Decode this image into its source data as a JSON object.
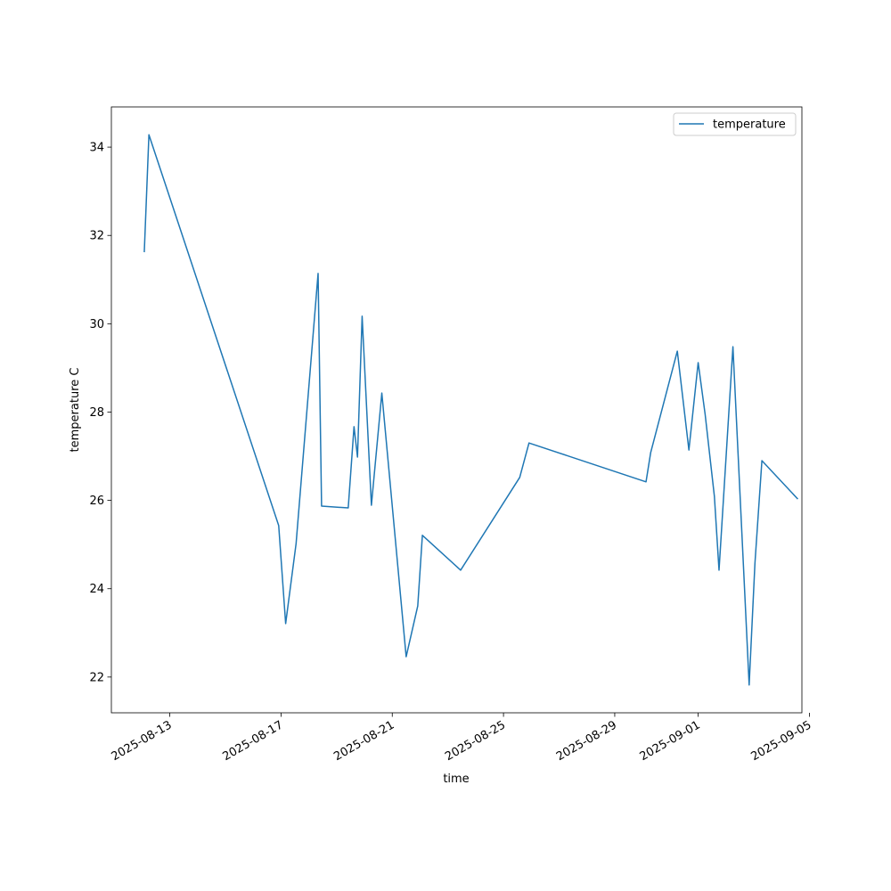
{
  "chart_data": {
    "type": "line",
    "xlabel": "time",
    "ylabel": "temperature C",
    "x": [
      "2025-08-12T02:00",
      "2025-08-12T06:00",
      "2025-08-16T22:00",
      "2025-08-17T04:00",
      "2025-08-17T13:00",
      "2025-08-18T08:00",
      "2025-08-18T11:00",
      "2025-08-19T10:00",
      "2025-08-19T15:00",
      "2025-08-19T18:00",
      "2025-08-19T22:00",
      "2025-08-20T06:00",
      "2025-08-20T15:00",
      "2025-08-21T12:00",
      "2025-08-21T22:00",
      "2025-08-22T02:00",
      "2025-08-23T11:00",
      "2025-08-25T14:00",
      "2025-08-25T22:00",
      "2025-08-30T03:00",
      "2025-08-30T07:00",
      "2025-08-31T06:00",
      "2025-08-31T16:00",
      "2025-09-01T00:00",
      "2025-09-01T06:00",
      "2025-09-01T14:00",
      "2025-09-01T18:00",
      "2025-09-02T06:00",
      "2025-09-02T20:00",
      "2025-09-03T01:00",
      "2025-09-03T07:00",
      "2025-09-04T14:00"
    ],
    "series": [
      {
        "name": "temperature",
        "color": "#1f77b4",
        "values": [
          31.62,
          34.28,
          25.43,
          23.21,
          25.02,
          31.14,
          25.87,
          25.83,
          27.67,
          26.98,
          30.17,
          25.89,
          28.43,
          22.46,
          23.61,
          25.21,
          24.42,
          26.52,
          27.3,
          26.42,
          27.08,
          29.38,
          27.14,
          29.12,
          27.95,
          26.09,
          24.42,
          29.48,
          21.82,
          24.58,
          26.9,
          26.03
        ]
      }
    ],
    "xlim": [
      "2025-08-10T21:36",
      "2025-09-04T17:31"
    ],
    "xticks": [
      "2025-08-13",
      "2025-08-17",
      "2025-08-21",
      "2025-08-25",
      "2025-08-29",
      "2025-09-01",
      "2025-09-05"
    ],
    "ylim": [
      21.19,
      34.91
    ],
    "yticks": [
      22,
      24,
      26,
      28,
      30,
      32,
      34
    ],
    "legend": "upper right"
  }
}
